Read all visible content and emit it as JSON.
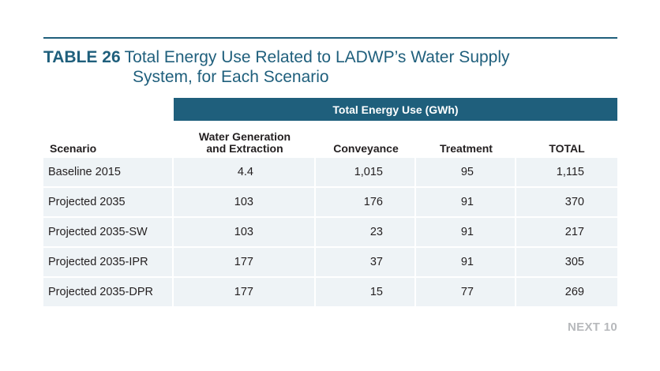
{
  "table": {
    "label": "TABLE 26",
    "title_line1": "Total Energy Use Related to LADWP’s Water Supply",
    "title_line2": "System, for Each Scenario",
    "group_header": "Total Energy Use (GWh)",
    "columns": {
      "scenario": "Scenario",
      "generation_line1": "Water Generation",
      "generation_line2": "and Extraction",
      "conveyance": "Conveyance",
      "treatment": "Treatment",
      "total": "TOTAL"
    },
    "rows": [
      {
        "scenario": "Baseline 2015",
        "generation": "4.4",
        "conveyance": "1,015",
        "treatment": "95",
        "total": "1,115"
      },
      {
        "scenario": "Projected 2035",
        "generation": "103",
        "conveyance": "176",
        "treatment": "91",
        "total": "370"
      },
      {
        "scenario": "Projected 2035-SW",
        "generation": "103",
        "conveyance": "23",
        "treatment": "91",
        "total": "217"
      },
      {
        "scenario": "Projected 2035-IPR",
        "generation": "177",
        "conveyance": "37",
        "treatment": "91",
        "total": "305"
      },
      {
        "scenario": "Projected 2035-DPR",
        "generation": "177",
        "conveyance": "15",
        "treatment": "77",
        "total": "269"
      }
    ]
  },
  "brand": "NEXT 10",
  "colors": {
    "accent": "#1f5f7c",
    "row_fill": "#eef3f6",
    "brand_gray": "#b7b9bc"
  }
}
